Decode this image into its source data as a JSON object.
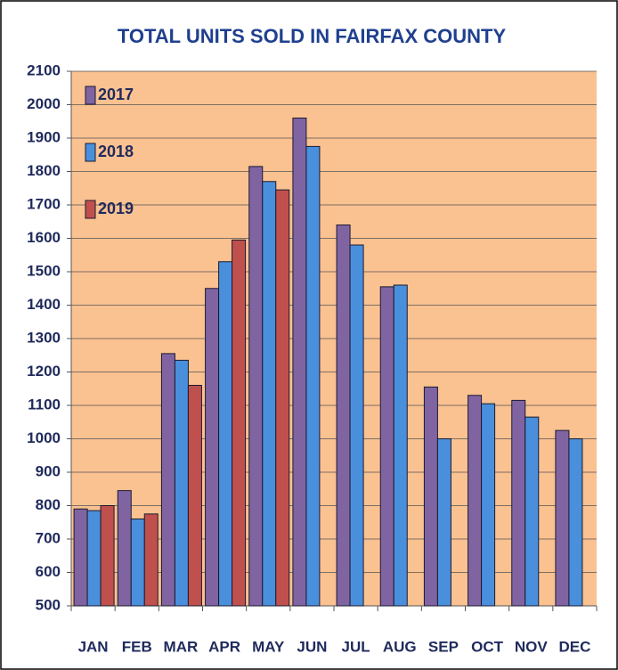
{
  "chart_data": {
    "type": "bar",
    "title": "TOTAL UNITS SOLD IN FAIRFAX COUNTY",
    "categories": [
      "JAN",
      "FEB",
      "MAR",
      "APR",
      "MAY",
      "JUN",
      "JUL",
      "AUG",
      "SEP",
      "OCT",
      "NOV",
      "DEC"
    ],
    "series": [
      {
        "name": "2017",
        "color": "#8064a2",
        "values": [
          790,
          845,
          1255,
          1450,
          1815,
          1960,
          1640,
          1455,
          1155,
          1130,
          1115,
          1025
        ]
      },
      {
        "name": "2018",
        "color": "#4a8fdc",
        "values": [
          785,
          760,
          1235,
          1530,
          1770,
          1875,
          1580,
          1460,
          1000,
          1105,
          1065,
          1000
        ]
      },
      {
        "name": "2019",
        "color": "#c0504d",
        "values": [
          800,
          775,
          1160,
          1595,
          1745,
          null,
          null,
          null,
          null,
          null,
          null,
          null
        ]
      }
    ],
    "ylim": [
      500,
      2100
    ],
    "yticks": [
      500,
      600,
      700,
      800,
      900,
      1000,
      1100,
      1200,
      1300,
      1400,
      1500,
      1600,
      1700,
      1800,
      1900,
      2000,
      2100
    ],
    "grid": true,
    "legend": "upper left",
    "background": "#fac191"
  }
}
